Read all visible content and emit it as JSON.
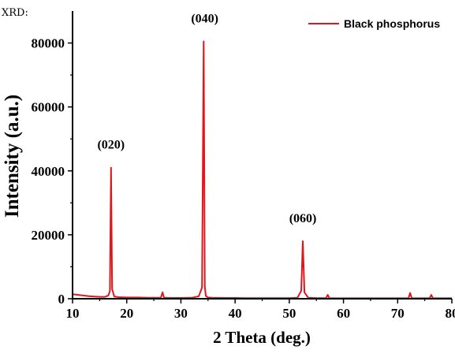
{
  "page_label": "XRD:",
  "colors": {
    "series": "#e0161b",
    "axis": "#000000"
  },
  "chart_data": {
    "type": "line",
    "title": "",
    "xlabel": "2 Theta (deg.)",
    "ylabel": "Intensity (a.u.)",
    "xlim": [
      10,
      80
    ],
    "ylim": [
      0,
      90000
    ],
    "x_ticks": [
      10,
      20,
      30,
      40,
      50,
      60,
      70,
      80
    ],
    "x_tick_labels": [
      "10",
      "20",
      "30",
      "40",
      "50",
      "60",
      "70",
      "80"
    ],
    "y_ticks": [
      0,
      20000,
      40000,
      60000,
      80000
    ],
    "y_tick_labels": [
      "0",
      "20000",
      "40000",
      "60000",
      "80000"
    ],
    "grid": false,
    "legend": {
      "position": "top-right",
      "entries": [
        "Black phosphorus"
      ]
    },
    "series": [
      {
        "name": "Black phosphorus",
        "x": [
          10,
          11,
          12,
          13,
          14,
          15,
          16,
          16.6,
          16.9,
          17.1,
          17.3,
          17.7,
          18.5,
          20,
          22,
          24,
          26.3,
          26.6,
          26.9,
          28,
          30,
          32,
          33.3,
          33.9,
          34.2,
          34.4,
          34.6,
          35,
          35.8,
          38,
          40,
          42,
          45,
          48,
          50,
          51.5,
          52.2,
          52.5,
          52.8,
          53.5,
          55,
          56.8,
          57.1,
          57.4,
          60,
          65,
          70,
          72,
          72.3,
          72.6,
          74,
          75.9,
          76.2,
          76.5,
          78,
          80
        ],
        "y": [
          1400,
          1200,
          1000,
          800,
          700,
          600,
          600,
          1000,
          2500,
          41000,
          3000,
          700,
          500,
          400,
          400,
          300,
          300,
          2000,
          300,
          250,
          250,
          300,
          800,
          3500,
          80500,
          4000,
          900,
          400,
          300,
          250,
          250,
          200,
          200,
          200,
          200,
          300,
          2500,
          18000,
          2000,
          300,
          200,
          200,
          1200,
          200,
          150,
          150,
          150,
          150,
          1800,
          150,
          150,
          150,
          1200,
          150,
          150,
          150
        ]
      }
    ],
    "annotations": [
      {
        "text": "(020)",
        "x": 17.1,
        "y": 41000
      },
      {
        "text": "(040)",
        "x": 34.4,
        "y": 80500
      },
      {
        "text": "(060)",
        "x": 52.5,
        "y": 18000
      }
    ]
  }
}
